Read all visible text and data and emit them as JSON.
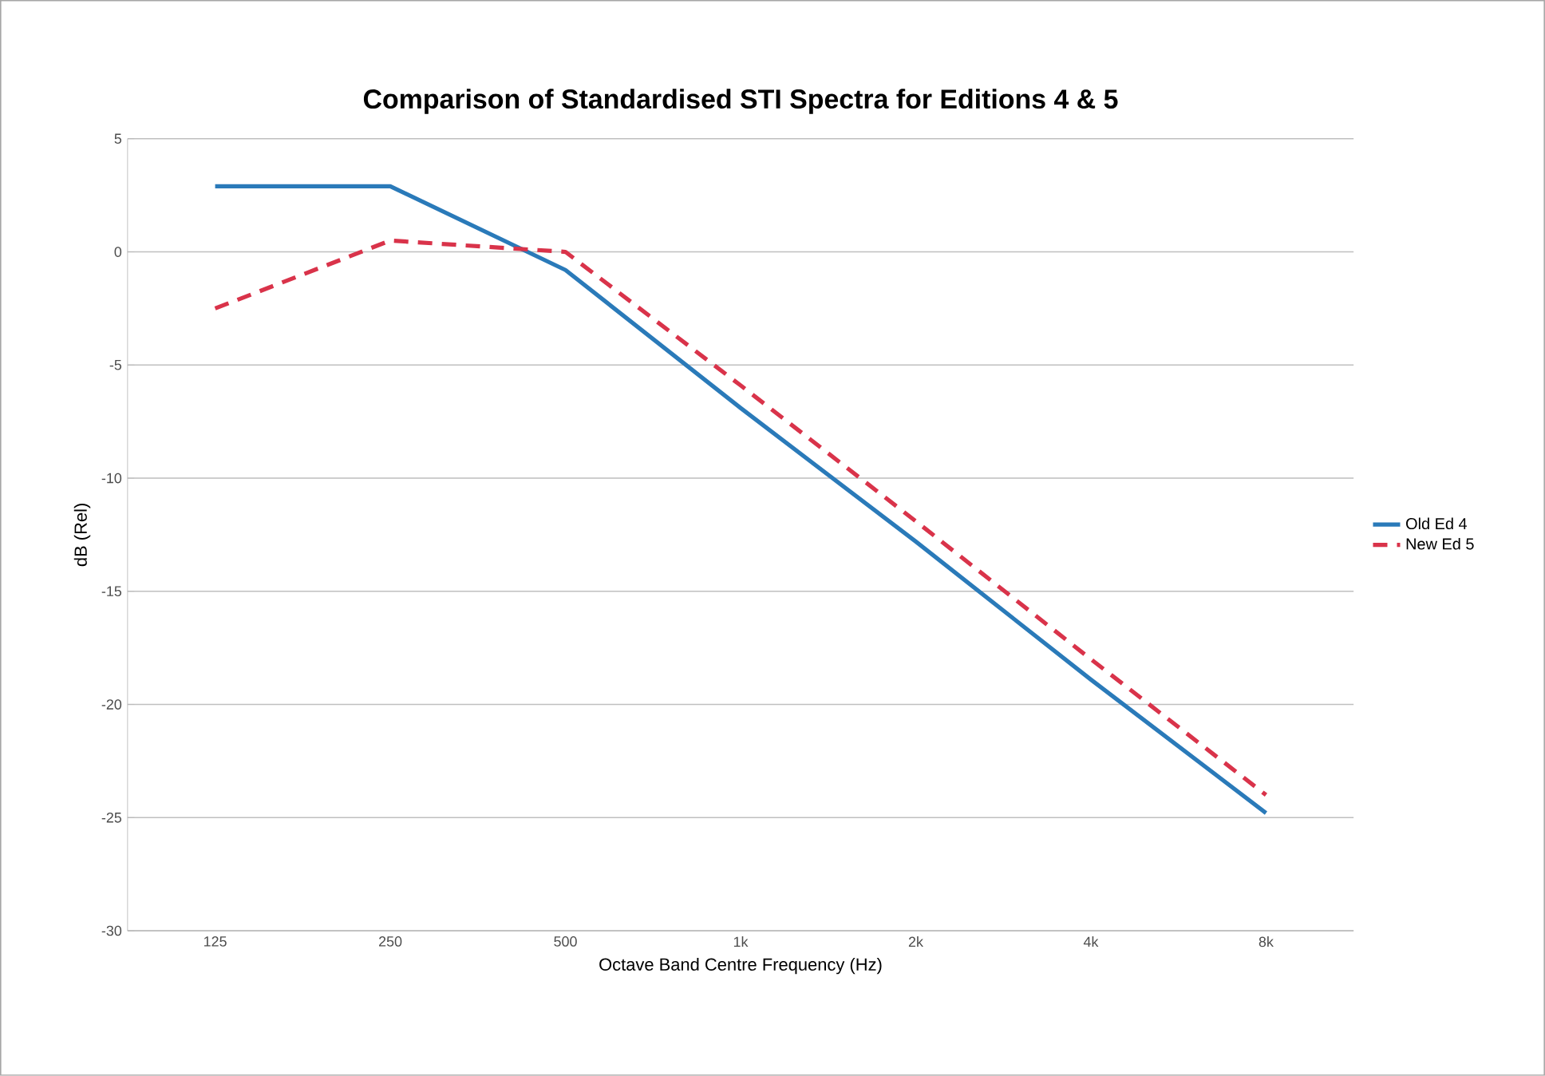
{
  "chart_data": {
    "type": "line",
    "title": "Comparison of Standardised STI Spectra for Editions 4 & 5",
    "xlabel": "Octave Band Centre Frequency (Hz)",
    "ylabel": "dB (Rel)",
    "categories": [
      "125",
      "250",
      "500",
      "1k",
      "2k",
      "4k",
      "8k"
    ],
    "series": [
      {
        "name": "Old Ed 4",
        "color": "#2a7ab9",
        "line_style": "solid",
        "values": [
          2.9,
          2.9,
          -0.8,
          -6.9,
          -12.8,
          -18.9,
          -24.8
        ]
      },
      {
        "name": "New  Ed 5",
        "color": "#d9334a",
        "line_style": "dashed",
        "values": [
          -2.5,
          0.5,
          0,
          -5.9,
          -11.9,
          -18,
          -24
        ]
      }
    ],
    "ylim": [
      -30,
      5
    ],
    "yticks": [
      -30,
      -25,
      -20,
      -15,
      -10,
      -5,
      0,
      5
    ],
    "grid": "y",
    "legend": "right",
    "marker": "none"
  }
}
